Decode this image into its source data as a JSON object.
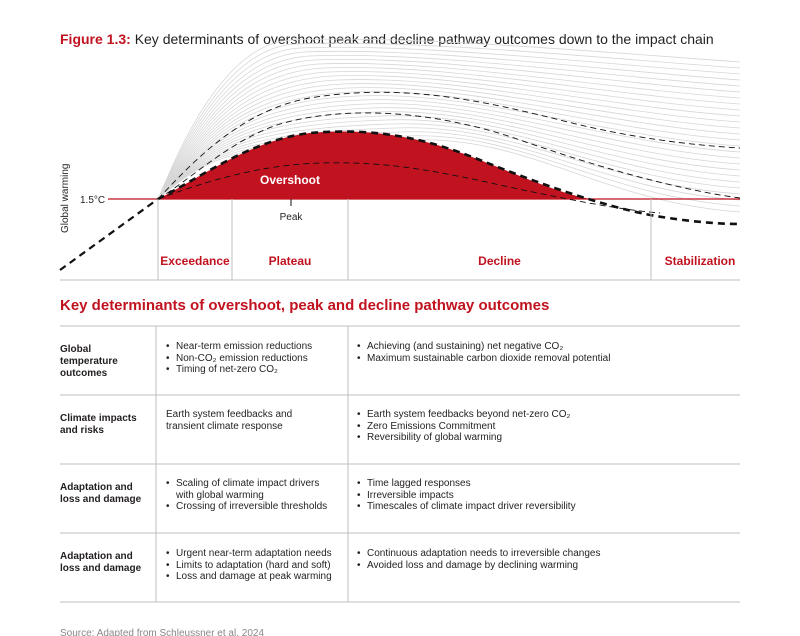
{
  "figure": {
    "number": "Figure 1.3:",
    "title": "Key determinants of overshoot peak and decline pathway outcomes down to the impact chain"
  },
  "diagram": {
    "y_axis_label": "Global warming",
    "threshold_label": "1.5°C",
    "overshoot_label": "Overshoot",
    "peak_label": "Peak",
    "stages": [
      "Exceedance",
      "Plateau",
      "Decline",
      "Stabilization"
    ],
    "colors": {
      "accent": "#c1121f",
      "fan": "#d6d6d6",
      "rule": "#bfbfbf"
    }
  },
  "table": {
    "heading": "Key determinants of overshoot, peak and decline pathway outcomes",
    "rows": [
      {
        "label": "Global temperature outcomes",
        "left": [
          {
            "text": "Near-term emission reductions",
            "bullet": true
          },
          {
            "text": "Non-CO₂ emission reductions",
            "bullet": true
          },
          {
            "text": "Timing of net-zero CO₂",
            "bullet": true
          }
        ],
        "right": [
          {
            "text": "Achieving (and sustaining) net negative CO₂",
            "bullet": true
          },
          {
            "text": "Maximum sustainable carbon dioxide removal potential",
            "bullet": true
          }
        ]
      },
      {
        "label": "Climate impacts and risks",
        "left": [
          {
            "text": "Earth system feedbacks and",
            "bullet": false
          },
          {
            "text": "transient climate response",
            "bullet": false
          }
        ],
        "right": [
          {
            "text": "Earth system feedbacks beyond net-zero CO₂",
            "bullet": true
          },
          {
            "text": "Zero Emissions Commitment",
            "bullet": true
          },
          {
            "text": "Reversibility of global warming",
            "bullet": true
          }
        ]
      },
      {
        "label": "Adaptation and loss and damage",
        "left": [
          {
            "text": "Scaling of climate impact drivers",
            "bullet": true
          },
          {
            "text": "with global warming",
            "bullet": false,
            "cont": true
          },
          {
            "text": "Crossing of irreversible thresholds",
            "bullet": true
          }
        ],
        "right": [
          {
            "text": "Time lagged responses",
            "bullet": true
          },
          {
            "text": "Irreversible impacts",
            "bullet": true
          },
          {
            "text": "Timescales of climate impact driver reversibility",
            "bullet": true
          }
        ]
      },
      {
        "label": "Adaptation and loss and damage",
        "left": [
          {
            "text": "Urgent near-term adaptation needs",
            "bullet": true
          },
          {
            "text": "Limits to adaptation (hard and soft)",
            "bullet": true
          },
          {
            "text": "Loss and damage at peak warming",
            "bullet": true
          }
        ],
        "right": [
          {
            "text": "Continuous adaptation needs to irreversible changes",
            "bullet": true
          },
          {
            "text": "Avoided loss and damage by declining warming",
            "bullet": true
          }
        ]
      }
    ]
  },
  "source": "Source: Adapted from Schleussner et al. 2024"
}
